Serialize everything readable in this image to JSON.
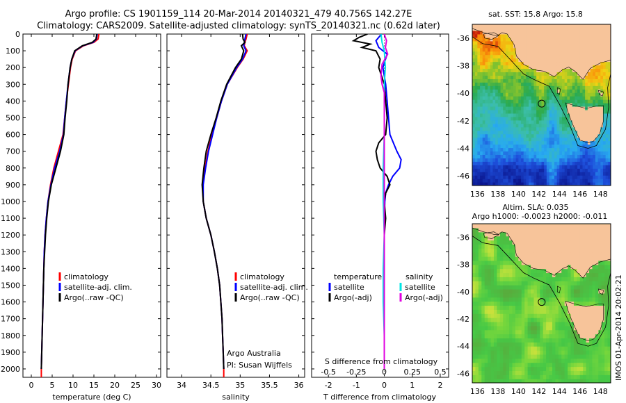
{
  "title": {
    "line1": "Argo profile: CS 1901159_114 20-Mar-2014 20140321_479 40.756S 142.27E",
    "line2": "Climatology: CARS2009. Satellite-adjusted climatology: synTS_20140321.nc (0.62d later)"
  },
  "chart_data": [
    {
      "type": "line",
      "name": "temperature-panel",
      "xlabel": "temperature (deg C)",
      "ylabel": "",
      "xlim": [
        -2,
        31
      ],
      "ylim": [
        2050,
        0
      ],
      "xticks": [
        0,
        5,
        10,
        15,
        20,
        25,
        30
      ],
      "yticks": [
        0,
        100,
        200,
        300,
        400,
        500,
        600,
        700,
        800,
        900,
        1000,
        1100,
        1200,
        1300,
        1400,
        1500,
        1600,
        1700,
        1800,
        1900,
        2000
      ],
      "legend": {
        "placement": "lower-center",
        "entries": [
          "climatology",
          "satellite-adj. clim.",
          "Argo(..raw -QC)"
        ]
      },
      "series": [
        {
          "name": "climatology",
          "color": "#ff0000",
          "depth": [
            0,
            30,
            50,
            70,
            100,
            150,
            200,
            300,
            400,
            500,
            600,
            700,
            800,
            900,
            1000,
            1100,
            1200,
            1300,
            1400,
            1500,
            1600,
            1700,
            1800,
            1900,
            2000,
            2050
          ],
          "values": [
            16.2,
            16.0,
            15.0,
            12.5,
            10.6,
            9.8,
            9.4,
            8.9,
            8.4,
            8.0,
            7.6,
            6.5,
            5.4,
            4.6,
            4.0,
            3.6,
            3.3,
            3.1,
            3.0,
            2.9,
            2.8,
            2.7,
            2.6,
            2.5,
            2.4,
            2.4
          ]
        },
        {
          "name": "satellite-adj. clim.",
          "color": "#0000ff",
          "depth": [
            0,
            30,
            50,
            70,
            100,
            150,
            200,
            300,
            400,
            500,
            600,
            700,
            800,
            900,
            1000,
            1100,
            1200,
            1300,
            1400,
            1500,
            1600,
            1700,
            1800,
            1900,
            2000
          ],
          "values": [
            15.8,
            15.6,
            14.8,
            12.3,
            10.5,
            9.7,
            9.3,
            8.8,
            8.4,
            8.0,
            7.7,
            6.8,
            5.6,
            4.7,
            4.0,
            3.6,
            3.3,
            3.1,
            3.0,
            2.9,
            2.8,
            2.7,
            2.6,
            2.5,
            2.4
          ]
        },
        {
          "name": "Argo(..raw -QC)",
          "color": "#000000",
          "depth": [
            0,
            30,
            50,
            70,
            100,
            150,
            200,
            300,
            400,
            500,
            600,
            700,
            800,
            900,
            1000,
            1100,
            1200,
            1300,
            1400,
            1500,
            1600,
            1700,
            1800,
            1900,
            2000
          ],
          "values": [
            15.7,
            15.5,
            14.6,
            12.2,
            10.4,
            9.7,
            9.3,
            8.8,
            8.5,
            8.1,
            7.8,
            7.0,
            5.9,
            4.8,
            4.1,
            3.7,
            3.4,
            3.2,
            3.0,
            2.9,
            2.8,
            2.7,
            2.6,
            2.5,
            2.4
          ]
        }
      ]
    },
    {
      "type": "line",
      "name": "salinity-panel",
      "xlabel": "salinity",
      "ylabel": "",
      "xlim": [
        33.75,
        36.1
      ],
      "ylim": [
        2050,
        0
      ],
      "xticks": [
        34,
        34.5,
        35,
        35.5,
        36
      ],
      "legend": {
        "placement": "lower-center",
        "entries": [
          "climatology",
          "satellite-adj. clim.",
          "Argo(..raw -QC)"
        ]
      },
      "annotation": [
        "Argo Australia",
        "PI: Susan Wijffels"
      ],
      "series": [
        {
          "name": "climatology",
          "color": "#ff0000",
          "depth": [
            0,
            30,
            50,
            70,
            100,
            150,
            200,
            300,
            400,
            500,
            600,
            700,
            800,
            900,
            1000,
            1100,
            1200,
            1300,
            1400,
            1500,
            1600,
            1700,
            1800,
            1900,
            2000,
            2050
          ],
          "values": [
            35.12,
            35.1,
            35.08,
            35.07,
            35.12,
            35.05,
            34.95,
            34.78,
            34.68,
            34.6,
            34.52,
            34.45,
            34.4,
            34.36,
            34.37,
            34.42,
            34.5,
            34.56,
            34.61,
            34.65,
            34.67,
            34.69,
            34.7,
            34.71,
            34.72,
            34.72
          ]
        },
        {
          "name": "satellite-adj. clim.",
          "color": "#0000ff",
          "depth": [
            0,
            30,
            50,
            70,
            100,
            150,
            200,
            300,
            400,
            500,
            600,
            700,
            800,
            900,
            1000,
            1100,
            1200,
            1300,
            1400,
            1500,
            1600,
            1700,
            1800,
            1900,
            2000
          ],
          "values": [
            35.1,
            35.08,
            35.07,
            35.06,
            35.1,
            35.04,
            34.94,
            34.78,
            34.68,
            34.6,
            34.53,
            34.46,
            34.41,
            34.37,
            34.37,
            34.42,
            34.5,
            34.56,
            34.61,
            34.65,
            34.67,
            34.69,
            34.7,
            34.71,
            34.72
          ]
        },
        {
          "name": "Argo(..raw -QC)",
          "color": "#000000",
          "depth": [
            0,
            30,
            50,
            70,
            100,
            150,
            200,
            300,
            400,
            500,
            600,
            700,
            800,
            900,
            1000,
            1100,
            1200,
            1300,
            1400,
            1500,
            1600,
            1700,
            1800,
            1900,
            2000
          ],
          "values": [
            35.04,
            35.05,
            35.08,
            35.02,
            35.06,
            35.02,
            34.92,
            34.77,
            34.67,
            34.59,
            34.5,
            34.42,
            34.38,
            34.35,
            34.37,
            34.42,
            34.5,
            34.56,
            34.61,
            34.65,
            34.67,
            34.69,
            34.7,
            34.71,
            34.72
          ]
        }
      ]
    },
    {
      "type": "line",
      "name": "difference-panel",
      "xlabel": "T difference from climatology",
      "top_xlabel": "S difference from climatology",
      "xlim": [
        -2.6,
        2.3
      ],
      "ylim": [
        2050,
        0
      ],
      "xticks": [
        -2,
        -1,
        0,
        1,
        2
      ],
      "top_xticks": [
        -0.5,
        -0.25,
        0,
        0.25,
        0.5
      ],
      "legend": {
        "placement": "lower-center",
        "temperature_title": "temperature",
        "salinity_title": "salinity",
        "entries": [
          "satellite",
          "Argo(-adj)",
          "satellite",
          "Argo(-adj)"
        ]
      },
      "series": [
        {
          "name": "T satellite",
          "color": "#0000ff",
          "depth": [
            0,
            40,
            80,
            120,
            200,
            300,
            400,
            500,
            600,
            700,
            750,
            800,
            850,
            900,
            950,
            1000,
            1100,
            1200,
            1400,
            1600,
            1800,
            2000
          ],
          "values": [
            -0.1,
            -0.3,
            -0.2,
            0.1,
            -0.05,
            0.05,
            0.1,
            0.15,
            0.2,
            0.45,
            0.6,
            0.55,
            0.3,
            0.15,
            0.05,
            0.02,
            0.0,
            0.0,
            0.0,
            0.0,
            0.0,
            0.0
          ]
        },
        {
          "name": "T Argo(-adj)",
          "color": "#000000",
          "depth": [
            0,
            20,
            40,
            60,
            80,
            100,
            150,
            200,
            300,
            400,
            500,
            600,
            650,
            700,
            750,
            800,
            850,
            900,
            950,
            1000,
            1100,
            1200,
            1400,
            1600,
            1800,
            2000
          ],
          "values": [
            -0.6,
            -0.9,
            -1.1,
            -0.5,
            -0.8,
            -0.3,
            -0.15,
            -0.2,
            0.0,
            0.05,
            0.1,
            0.05,
            -0.2,
            -0.3,
            -0.25,
            -0.15,
            0.1,
            0.2,
            0.05,
            0.0,
            0.05,
            0.0,
            0.0,
            0.0,
            0.0,
            0.0
          ]
        },
        {
          "name": "S satellite",
          "color": "#00e5e5",
          "depth": [
            0,
            50,
            100,
            200,
            300,
            400,
            600,
            800,
            1000,
            1200,
            1400,
            1600,
            1800,
            2000
          ],
          "values": [
            -0.03,
            -0.02,
            0.0,
            0.01,
            0.0,
            0.0,
            0.0,
            -0.01,
            -0.01,
            0.0,
            -0.01,
            -0.01,
            0.0,
            0.0
          ]
        },
        {
          "name": "S Argo(-adj)",
          "color": "#e000e0",
          "depth": [
            0,
            40,
            80,
            120,
            180,
            250,
            300,
            350,
            400,
            500,
            600,
            800,
            1000,
            1100,
            1200,
            1400,
            1600,
            1800,
            2000
          ],
          "values": [
            0.0,
            0.02,
            0.01,
            0.03,
            -0.02,
            -0.03,
            -0.02,
            0.0,
            0.0,
            0.0,
            0.0,
            0.0,
            0.0,
            0.0,
            0.0,
            0.0,
            0.0,
            0.0,
            0.0
          ]
        }
      ]
    },
    {
      "type": "heatmap",
      "name": "sst-map",
      "title": "sat. SST: 15.8  Argo: 15.8",
      "xlim": [
        135.5,
        149
      ],
      "ylim": [
        -46.7,
        -35
      ],
      "xticks": [
        136,
        138,
        140,
        142,
        144,
        146,
        148
      ],
      "yticks": [
        -36,
        -38,
        -40,
        -42,
        -44,
        -46
      ],
      "argo_position": {
        "lon": 142.27,
        "lat": -40.756
      }
    },
    {
      "type": "heatmap",
      "name": "sla-map",
      "title_line1": "Altim. SLA: 0.035",
      "title_line2": "Argo h1000: -0.0023  h2000: -0.011",
      "xlim": [
        135.5,
        149
      ],
      "ylim": [
        -46.7,
        -35
      ],
      "xticks": [
        136,
        138,
        140,
        142,
        144,
        146,
        148
      ],
      "yticks": [
        -36,
        -38,
        -40,
        -42,
        -44,
        -46
      ],
      "argo_position": {
        "lon": 142.27,
        "lat": -40.756
      },
      "side_label": "IMOS 01-Apr-2014 20:02:21"
    }
  ],
  "colors": {
    "climatology": "#ff0000",
    "satellite": "#0000ff",
    "argo": "#000000",
    "salinity_satellite": "#00e5e5",
    "salinity_argo": "#e000e0",
    "land": "#f7c49a"
  }
}
